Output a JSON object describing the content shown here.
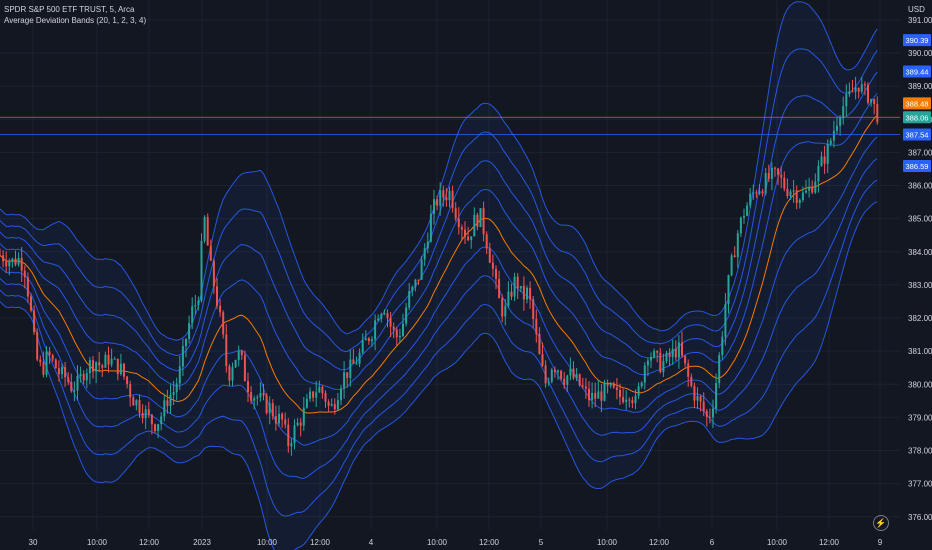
{
  "legend": {
    "symbol_line": "SPDR S&P 500 ETF TRUST, 5, Arca",
    "indicator_line": "Average Deviation Bands (20, 1, 2, 3, 4)"
  },
  "chart_data": {
    "type": "candlestick",
    "currency": "USD",
    "ylim": [
      375.6,
      391.6
    ],
    "y_ticks": [
      "391.00",
      "390.00",
      "389.00",
      "388.00",
      "387.00",
      "386.00",
      "385.00",
      "384.00",
      "383.00",
      "382.00",
      "381.00",
      "380.00",
      "379.00",
      "378.00",
      "377.00",
      "376.00"
    ],
    "x_ticks": [
      "30",
      "10:00",
      "12:00",
      "2023",
      "10:00",
      "12:00",
      "4",
      "10:00",
      "12:00",
      "5",
      "10:00",
      "12:00",
      "6",
      "10:00",
      "12:00",
      "9"
    ],
    "price_labels": [
      {
        "value": 390.39,
        "text": "390.39",
        "color": "#2962ff"
      },
      {
        "value": 389.44,
        "text": "389.44",
        "color": "#2962ff"
      },
      {
        "value": 388.48,
        "text": "388.48",
        "color": "#f57c00"
      },
      {
        "value": 388.06,
        "text": "388.06",
        "color": "#26a69a"
      },
      {
        "value": 387.54,
        "text": "387.54",
        "color": "#2962ff"
      },
      {
        "value": 386.59,
        "text": "386.59",
        "color": "#2962ff"
      }
    ],
    "last_price": 388.06,
    "series_close_path": [
      [
        0,
        383.9
      ],
      [
        6,
        383.8
      ],
      [
        12,
        383.7
      ],
      [
        18,
        383.8
      ],
      [
        24,
        383.6
      ],
      [
        30,
        382.4
      ],
      [
        36,
        380.8
      ],
      [
        42,
        380.4
      ],
      [
        48,
        380.9
      ],
      [
        54,
        380.6
      ],
      [
        60,
        380.3
      ],
      [
        66,
        380.2
      ],
      [
        72,
        379.9
      ],
      [
        78,
        380.0
      ],
      [
        84,
        380.4
      ],
      [
        90,
        380.6
      ],
      [
        96,
        380.7
      ],
      [
        102,
        380.5
      ],
      [
        108,
        380.8
      ],
      [
        114,
        380.6
      ],
      [
        120,
        380.5
      ],
      [
        126,
        380.1
      ],
      [
        132,
        379.6
      ],
      [
        138,
        379.4
      ],
      [
        144,
        379.2
      ],
      [
        150,
        378.9
      ],
      [
        156,
        378.8
      ],
      [
        162,
        379.1
      ],
      [
        168,
        379.6
      ],
      [
        174,
        379.8
      ],
      [
        180,
        380.4
      ],
      [
        186,
        381.4
      ],
      [
        192,
        382.2
      ],
      [
        198,
        382.6
      ],
      [
        204,
        385.1
      ],
      [
        210,
        383.6
      ],
      [
        216,
        382.7
      ],
      [
        222,
        381.6
      ],
      [
        228,
        380.2
      ],
      [
        234,
        380.8
      ],
      [
        240,
        380.9
      ],
      [
        246,
        380.1
      ],
      [
        252,
        379.7
      ],
      [
        258,
        379.6
      ],
      [
        264,
        379.4
      ],
      [
        270,
        379.3
      ],
      [
        276,
        379.0
      ],
      [
        282,
        378.9
      ],
      [
        288,
        378.2
      ],
      [
        294,
        378.6
      ],
      [
        300,
        378.9
      ],
      [
        306,
        379.3
      ],
      [
        312,
        379.7
      ],
      [
        318,
        379.9
      ],
      [
        324,
        379.7
      ],
      [
        330,
        379.2
      ],
      [
        336,
        379.6
      ],
      [
        342,
        380.2
      ],
      [
        348,
        380.4
      ],
      [
        354,
        380.6
      ],
      [
        360,
        380.9
      ],
      [
        366,
        381.3
      ],
      [
        372,
        381.6
      ],
      [
        378,
        382.2
      ],
      [
        384,
        382.4
      ],
      [
        390,
        381.8
      ],
      [
        396,
        381.4
      ],
      [
        402,
        381.7
      ],
      [
        408,
        382.6
      ],
      [
        414,
        382.9
      ],
      [
        420,
        383.4
      ],
      [
        426,
        384.3
      ],
      [
        432,
        385.2
      ],
      [
        438,
        385.6
      ],
      [
        444,
        385.7
      ],
      [
        450,
        385.8
      ],
      [
        456,
        385.2
      ],
      [
        462,
        384.8
      ],
      [
        468,
        384.4
      ],
      [
        474,
        384.9
      ],
      [
        480,
        385.1
      ],
      [
        486,
        384.4
      ],
      [
        492,
        383.6
      ],
      [
        498,
        382.6
      ],
      [
        504,
        382.1
      ],
      [
        510,
        382.7
      ],
      [
        516,
        383.2
      ],
      [
        522,
        382.6
      ],
      [
        528,
        382.8
      ],
      [
        534,
        381.8
      ],
      [
        540,
        380.7
      ],
      [
        546,
        380.0
      ],
      [
        552,
        380.6
      ],
      [
        558,
        380.5
      ],
      [
        564,
        380.2
      ],
      [
        570,
        380.3
      ],
      [
        576,
        380.1
      ],
      [
        582,
        379.9
      ],
      [
        588,
        379.6
      ],
      [
        594,
        379.6
      ],
      [
        600,
        379.7
      ],
      [
        606,
        379.8
      ],
      [
        612,
        379.8
      ],
      [
        618,
        379.6
      ],
      [
        624,
        379.7
      ],
      [
        630,
        379.8
      ],
      [
        636,
        379.4
      ],
      [
        642,
        380.3
      ],
      [
        648,
        381.0
      ],
      [
        654,
        380.8
      ],
      [
        660,
        380.6
      ],
      [
        666,
        380.7
      ],
      [
        672,
        380.9
      ],
      [
        678,
        381.1
      ],
      [
        684,
        380.6
      ],
      [
        690,
        380.0
      ],
      [
        696,
        379.6
      ],
      [
        702,
        379.3
      ],
      [
        708,
        378.9
      ],
      [
        714,
        379.6
      ],
      [
        720,
        381.0
      ],
      [
        726,
        382.6
      ],
      [
        732,
        383.7
      ],
      [
        738,
        384.6
      ],
      [
        744,
        385.2
      ],
      [
        750,
        385.6
      ],
      [
        756,
        385.9
      ],
      [
        762,
        386.0
      ],
      [
        768,
        386.2
      ],
      [
        774,
        386.3
      ],
      [
        780,
        386.2
      ],
      [
        786,
        385.9
      ],
      [
        792,
        385.9
      ],
      [
        798,
        385.7
      ],
      [
        804,
        385.7
      ],
      [
        810,
        385.9
      ],
      [
        816,
        386.3
      ],
      [
        822,
        386.7
      ],
      [
        828,
        387.1
      ],
      [
        834,
        387.7
      ],
      [
        840,
        388.3
      ],
      [
        846,
        388.5
      ],
      [
        852,
        388.8
      ],
      [
        858,
        389.1
      ],
      [
        864,
        388.8
      ],
      [
        870,
        388.7
      ],
      [
        876,
        388.2
      ],
      [
        880,
        388.06
      ]
    ]
  }
}
